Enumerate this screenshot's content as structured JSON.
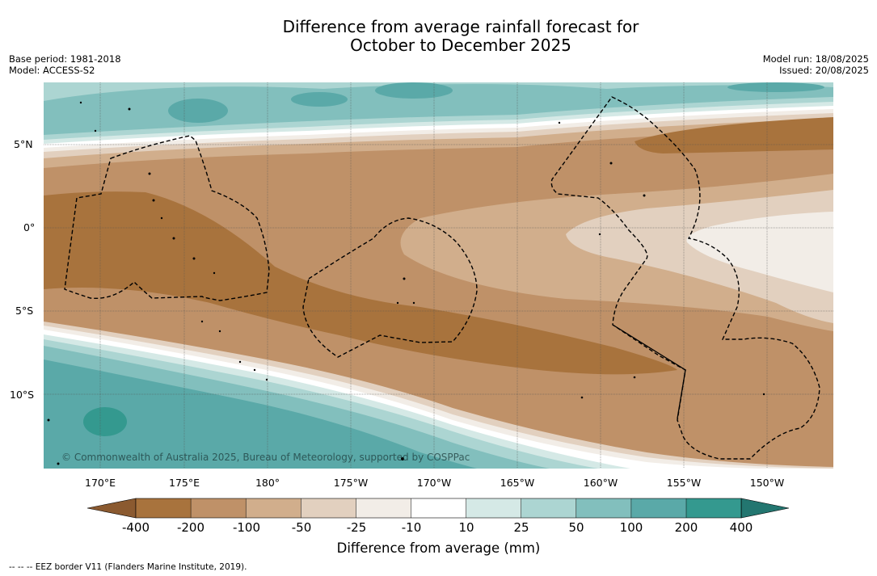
{
  "title_line1": "Difference from average rainfall forecast for",
  "title_line2": "October to December 2025",
  "meta_left": {
    "base_period": "Base period: 1981-2018",
    "model": "Model: ACCESS-S2"
  },
  "meta_right": {
    "model_run": "Model run: 18/08/2025",
    "issued": "Issued: 20/08/2025"
  },
  "map": {
    "lat_ticks": [
      "5°N",
      "0°",
      "5°S",
      "10°S"
    ],
    "lon_ticks": [
      "170°E",
      "175°E",
      "180°",
      "175°W",
      "170°W",
      "165°W",
      "160°W",
      "155°W",
      "150°W"
    ],
    "copyright": "© Commonwealth of Australia 2025, Bureau of Meteorology, supported by COSPPac",
    "legend_note": "--  --  -- EEZ border V11 (Flanders Marine Institute, 2019)."
  },
  "colorbar": {
    "title": "Difference from average (mm)",
    "labels": [
      "-400",
      "-200",
      "-100",
      "-50",
      "-25",
      "-10",
      "10",
      "25",
      "50",
      "100",
      "200",
      "400"
    ],
    "colors": [
      "#8b5a30",
      "#a8733d",
      "#bf9168",
      "#d1ae8c",
      "#e2d0bf",
      "#f2ede7",
      "#ffffff",
      "#d5e9e6",
      "#acd5d2",
      "#82bfbd",
      "#5aa9a8",
      "#34998f",
      "#237670"
    ]
  }
}
